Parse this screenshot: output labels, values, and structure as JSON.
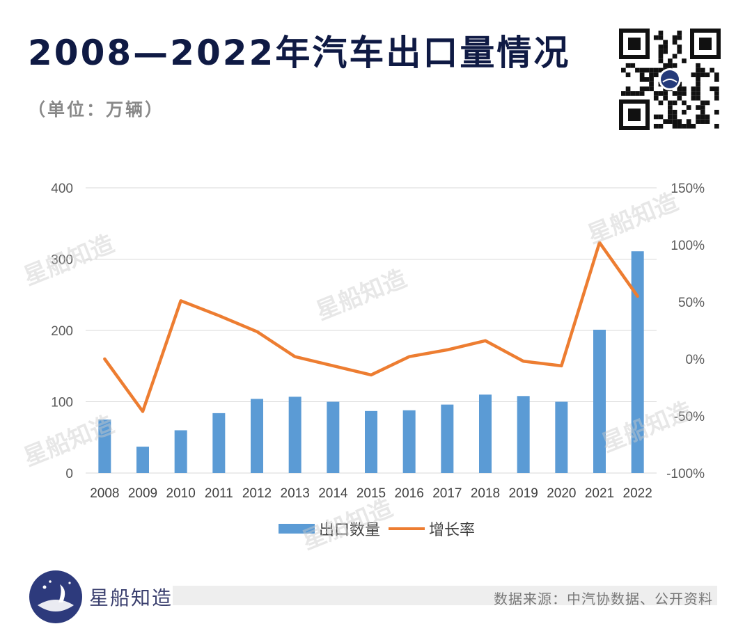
{
  "header": {
    "title": "2008—2022年汽车出口量情况",
    "unit": "（单位：万辆）"
  },
  "brand": {
    "name": "星船知造",
    "watermark": "星船知造"
  },
  "footer": {
    "source": "数据来源：中汽协数据、公开资料"
  },
  "icons": {
    "qr": "qr-code-icon",
    "logo": "starship-logo-icon"
  },
  "colors": {
    "bars": "#5b9bd5",
    "line": "#ed7d31",
    "title": "#0f1a44"
  },
  "chart_data": {
    "type": "bar",
    "categories": [
      "2008",
      "2009",
      "2010",
      "2011",
      "2012",
      "2013",
      "2014",
      "2015",
      "2016",
      "2017",
      "2018",
      "2019",
      "2020",
      "2021",
      "2022"
    ],
    "series": [
      {
        "name": "出口数量",
        "type": "bar",
        "axis": "left",
        "values": [
          75,
          37,
          60,
          84,
          104,
          107,
          100,
          87,
          88,
          96,
          110,
          108,
          100,
          201,
          311
        ]
      },
      {
        "name": "增长率",
        "type": "line",
        "axis": "right",
        "values": [
          0,
          -46,
          51,
          38,
          24,
          2,
          -6,
          -14,
          2,
          8,
          16,
          -2,
          -6,
          102,
          55
        ]
      }
    ],
    "y_left": {
      "ylim": [
        0,
        400
      ],
      "ticks": [
        "0",
        "100",
        "200",
        "300",
        "400"
      ]
    },
    "y_right": {
      "ylim": [
        -100,
        150
      ],
      "ticks": [
        "-100%",
        "-50%",
        "0%",
        "50%",
        "100%",
        "150%"
      ]
    },
    "grid": true,
    "legend_position": "bottom"
  }
}
